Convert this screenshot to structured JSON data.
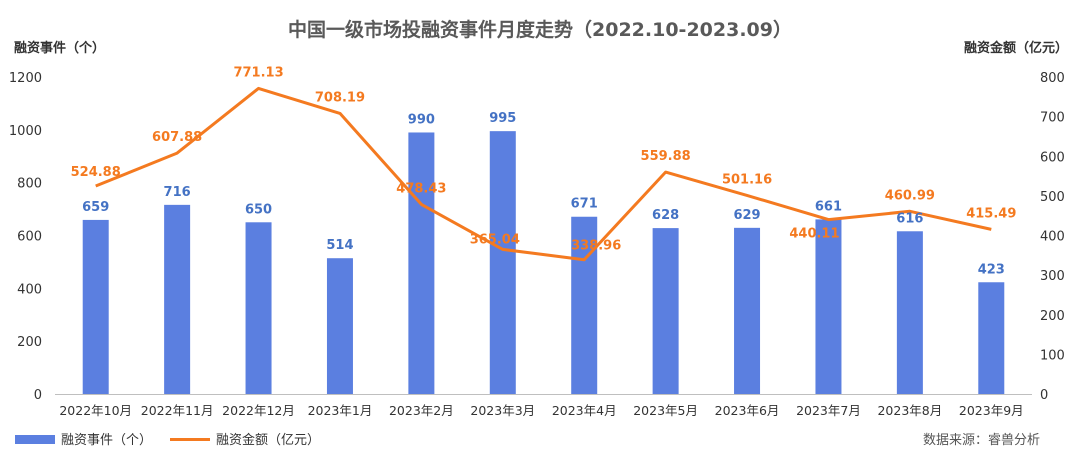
{
  "chart_data": {
    "type": "bar+line",
    "title": "中国一级市场投融资事件月度走势（2022.10-2023.09）",
    "categories": [
      "2022年10月",
      "2022年11月",
      "2022年12月",
      "2023年1月",
      "2023年2月",
      "2023年3月",
      "2023年4月",
      "2023年5月",
      "2023年6月",
      "2023年7月",
      "2023年8月",
      "2023年9月"
    ],
    "series": [
      {
        "name": "融资事件（个）",
        "type": "bar",
        "axis": "left",
        "color": "#5B7FE0",
        "label_color": "#4472C4",
        "values": [
          659,
          716,
          650,
          514,
          990,
          995,
          671,
          628,
          629,
          661,
          616,
          423
        ],
        "labels": [
          "659",
          "716",
          "650",
          "514",
          "990",
          "995",
          "671",
          "628",
          "629",
          "661",
          "616",
          "423"
        ]
      },
      {
        "name": "融资金额（亿元）",
        "type": "line",
        "axis": "right",
        "color": "#F47A20",
        "values": [
          524.88,
          607.88,
          771.13,
          708.19,
          478.43,
          365.04,
          338.96,
          559.88,
          501.16,
          440.11,
          460.99,
          415.49
        ],
        "labels": [
          "524.88",
          "607.88",
          "771.13",
          "708.19",
          "478.43",
          "365.04",
          "338.96",
          "559.88",
          "501.16",
          "440.11",
          "460.99",
          "415.49"
        ]
      }
    ],
    "y_left": {
      "label": "融资事件（个）",
      "range": [
        0,
        1200
      ],
      "ticks": [
        "0",
        "200",
        "400",
        "600",
        "800",
        "1000",
        "1200"
      ]
    },
    "y_right": {
      "label": "融资金额（亿元）",
      "range": [
        0,
        800
      ],
      "ticks": [
        "0",
        "100",
        "200",
        "300",
        "400",
        "500",
        "600",
        "700",
        "800"
      ]
    },
    "grid": false,
    "legend_position": "bottom-left",
    "source_text": "数据来源：睿兽分析"
  }
}
